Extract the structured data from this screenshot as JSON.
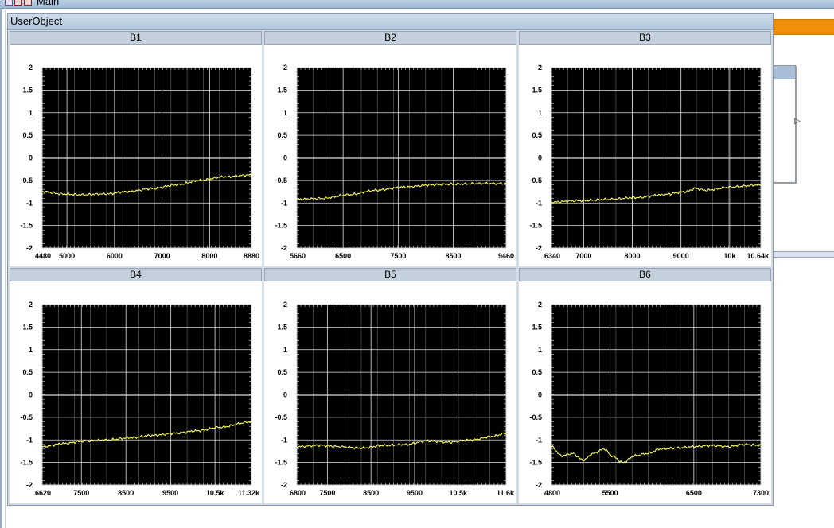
{
  "main_window": {
    "title": "Main"
  },
  "user_object": {
    "title": "UserObject",
    "panels": [
      {
        "title": "B1",
        "x_ticks": [
          "4480",
          "5000",
          "6000",
          "7000",
          "8000",
          "8880"
        ],
        "y_ticks": [
          "2",
          "1.5",
          "1",
          "0.5",
          "0",
          "-0.5",
          "-1",
          "-1.5",
          "-2"
        ],
        "chart_data": {
          "type": "line",
          "title": "B1",
          "x": [
            4480,
            4900,
            5300,
            5800,
            6300,
            6800,
            7300,
            7800,
            8300,
            8880
          ],
          "y": [
            -0.75,
            -0.8,
            -0.82,
            -0.8,
            -0.75,
            -0.68,
            -0.6,
            -0.5,
            -0.42,
            -0.38
          ],
          "xlim": [
            4480,
            8880
          ],
          "ylim": [
            -2,
            2
          ],
          "grid": true
        }
      },
      {
        "title": "B2",
        "x_ticks": [
          "5660",
          "6500",
          "7500",
          "8500",
          "9460"
        ],
        "y_ticks": [
          "2",
          "1.5",
          "1",
          "0.5",
          "0",
          "-0.5",
          "-1",
          "-1.5",
          "-2"
        ],
        "chart_data": {
          "type": "line",
          "title": "B2",
          "x": [
            5660,
            6100,
            6600,
            7100,
            7600,
            8100,
            8600,
            9100,
            9460
          ],
          "y": [
            -0.92,
            -0.9,
            -0.82,
            -0.72,
            -0.65,
            -0.6,
            -0.58,
            -0.57,
            -0.57
          ],
          "xlim": [
            5660,
            9460
          ],
          "ylim": [
            -2,
            2
          ],
          "grid": true
        }
      },
      {
        "title": "B3",
        "x_ticks": [
          "6340",
          "7000",
          "8000",
          "9000",
          "10k",
          "10.64k"
        ],
        "y_ticks": [
          "2",
          "1.5",
          "1",
          "0.5",
          "0",
          "-0.5",
          "-1",
          "-1.5",
          "-2"
        ],
        "chart_data": {
          "type": "line",
          "title": "B3",
          "x": [
            6340,
            6900,
            7500,
            8100,
            8600,
            9100,
            9300,
            9500,
            10000,
            10640
          ],
          "y": [
            -0.98,
            -0.95,
            -0.92,
            -0.88,
            -0.82,
            -0.75,
            -0.68,
            -0.72,
            -0.65,
            -0.6
          ],
          "xlim": [
            6340,
            10640
          ],
          "ylim": [
            -2,
            2
          ],
          "grid": true
        }
      },
      {
        "title": "B4",
        "x_ticks": [
          "6620",
          "7500",
          "8500",
          "9500",
          "10.5k",
          "11.32k"
        ],
        "y_ticks": [
          "2",
          "1.5",
          "1",
          "0.5",
          "0",
          "-0.5",
          "-1",
          "-1.5",
          "-2"
        ],
        "chart_data": {
          "type": "line",
          "title": "B4",
          "x": [
            6620,
            7100,
            7600,
            8100,
            8600,
            9100,
            9600,
            10100,
            10600,
            11320
          ],
          "y": [
            -1.15,
            -1.08,
            -1.02,
            -1.0,
            -0.95,
            -0.9,
            -0.85,
            -0.8,
            -0.72,
            -0.6
          ],
          "xlim": [
            6620,
            11320
          ],
          "ylim": [
            -2,
            2
          ],
          "grid": true
        }
      },
      {
        "title": "B5",
        "x_ticks": [
          "6800",
          "7500",
          "8500",
          "9500",
          "10.5k",
          "11.6k"
        ],
        "y_ticks": [
          "2",
          "1.5",
          "1",
          "0.5",
          "0",
          "-0.5",
          "-1",
          "-1.5",
          "-2"
        ],
        "chart_data": {
          "type": "line",
          "title": "B5",
          "x": [
            6800,
            7300,
            7800,
            8300,
            8800,
            9300,
            9800,
            10300,
            10800,
            11300,
            11600
          ],
          "y": [
            -1.15,
            -1.12,
            -1.15,
            -1.18,
            -1.12,
            -1.1,
            -1.02,
            -1.05,
            -1.0,
            -0.92,
            -0.85
          ],
          "xlim": [
            6800,
            11600
          ],
          "ylim": [
            -2,
            2
          ],
          "grid": true
        }
      },
      {
        "title": "B6",
        "x_ticks": [
          "4800",
          "5500",
          "6500",
          "7300"
        ],
        "y_ticks": [
          "2",
          "1.5",
          "1",
          "0.5",
          "0",
          "-0.5",
          "-1",
          "-1.5",
          "-2"
        ],
        "chart_data": {
          "type": "line",
          "title": "B6",
          "x": [
            4800,
            4920,
            5050,
            5180,
            5300,
            5430,
            5520,
            5650,
            5800,
            5950,
            6100,
            6300,
            6500,
            6700,
            6900,
            7100,
            7300
          ],
          "y": [
            -1.15,
            -1.35,
            -1.3,
            -1.45,
            -1.3,
            -1.2,
            -1.35,
            -1.5,
            -1.35,
            -1.3,
            -1.2,
            -1.18,
            -1.15,
            -1.12,
            -1.15,
            -1.1,
            -1.12
          ],
          "xlim": [
            4800,
            7300
          ],
          "ylim": [
            -2,
            2
          ],
          "grid": true
        }
      }
    ]
  },
  "colors": {
    "plot_background": "#000000",
    "grid": "#e0e0e0",
    "zero_line": "#8a8a8a",
    "trace": "#ffff5a",
    "accent_bar": "#f0900a"
  }
}
